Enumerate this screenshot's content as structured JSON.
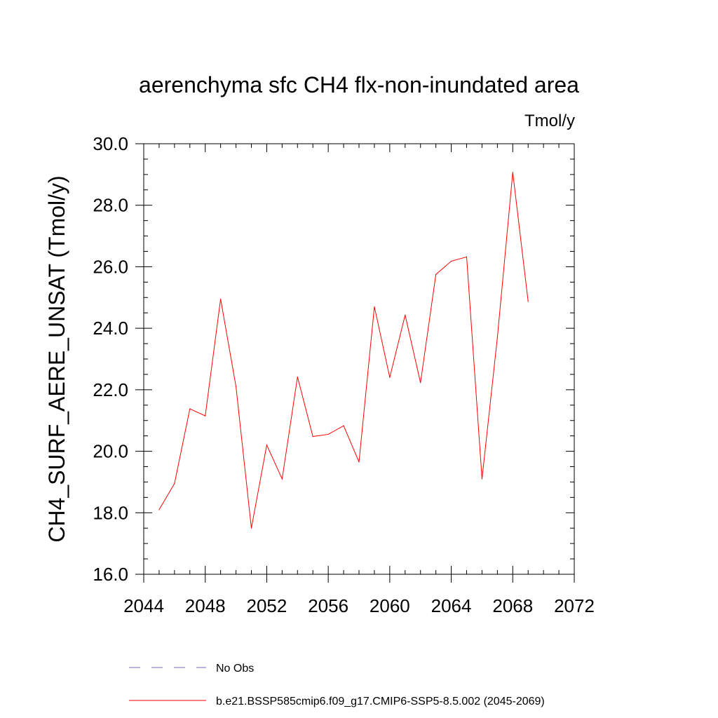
{
  "chart_data": {
    "type": "line",
    "title": "aerenchyma sfc CH4 flx-non-inundated area",
    "units": "Tmol/y",
    "ylabel": "CH4_SURF_AERE_UNSAT  (Tmol/y)",
    "xlabel": "",
    "xlim": [
      2044,
      2072
    ],
    "ylim": [
      16.0,
      30.0
    ],
    "x_ticks": [
      2044,
      2048,
      2052,
      2056,
      2060,
      2064,
      2068,
      2072
    ],
    "x_tick_labels": [
      "2044",
      "2048",
      "2052",
      "2056",
      "2060",
      "2064",
      "2068",
      "2072"
    ],
    "y_ticks": [
      16,
      18,
      20,
      22,
      24,
      26,
      28,
      30
    ],
    "y_tick_labels": [
      "16.0",
      "18.0",
      "20.0",
      "22.0",
      "24.0",
      "26.0",
      "28.0",
      "30.0"
    ],
    "grid": false,
    "legend_position": "bottom",
    "series": [
      {
        "name": "b.e21.BSSP585cmip6.f09_g17.CMIP6-SSP5-8.5.002 (2045-2069)",
        "color": "#ff0000",
        "dash": "solid",
        "x": [
          2045,
          2046,
          2047,
          2048,
          2049,
          2050,
          2051,
          2052,
          2053,
          2054,
          2055,
          2056,
          2057,
          2058,
          2059,
          2060,
          2061,
          2062,
          2063,
          2064,
          2065,
          2066,
          2067,
          2068,
          2069
        ],
        "y": [
          18.1,
          18.95,
          21.38,
          21.15,
          24.95,
          22.1,
          17.5,
          20.2,
          19.1,
          22.42,
          20.48,
          20.55,
          20.83,
          19.65,
          24.7,
          22.4,
          24.43,
          22.23,
          25.75,
          26.18,
          26.32,
          19.1,
          23.7,
          29.07,
          24.87
        ]
      }
    ],
    "legend": [
      {
        "label": "No Obs",
        "color": "#6e64c8",
        "dash": "dashed"
      },
      {
        "label": "b.e21.BSSP585cmip6.f09_g17.CMIP6-SSP5-8.5.002 (2045-2069)",
        "color": "#ff0000",
        "dash": "solid"
      }
    ]
  }
}
